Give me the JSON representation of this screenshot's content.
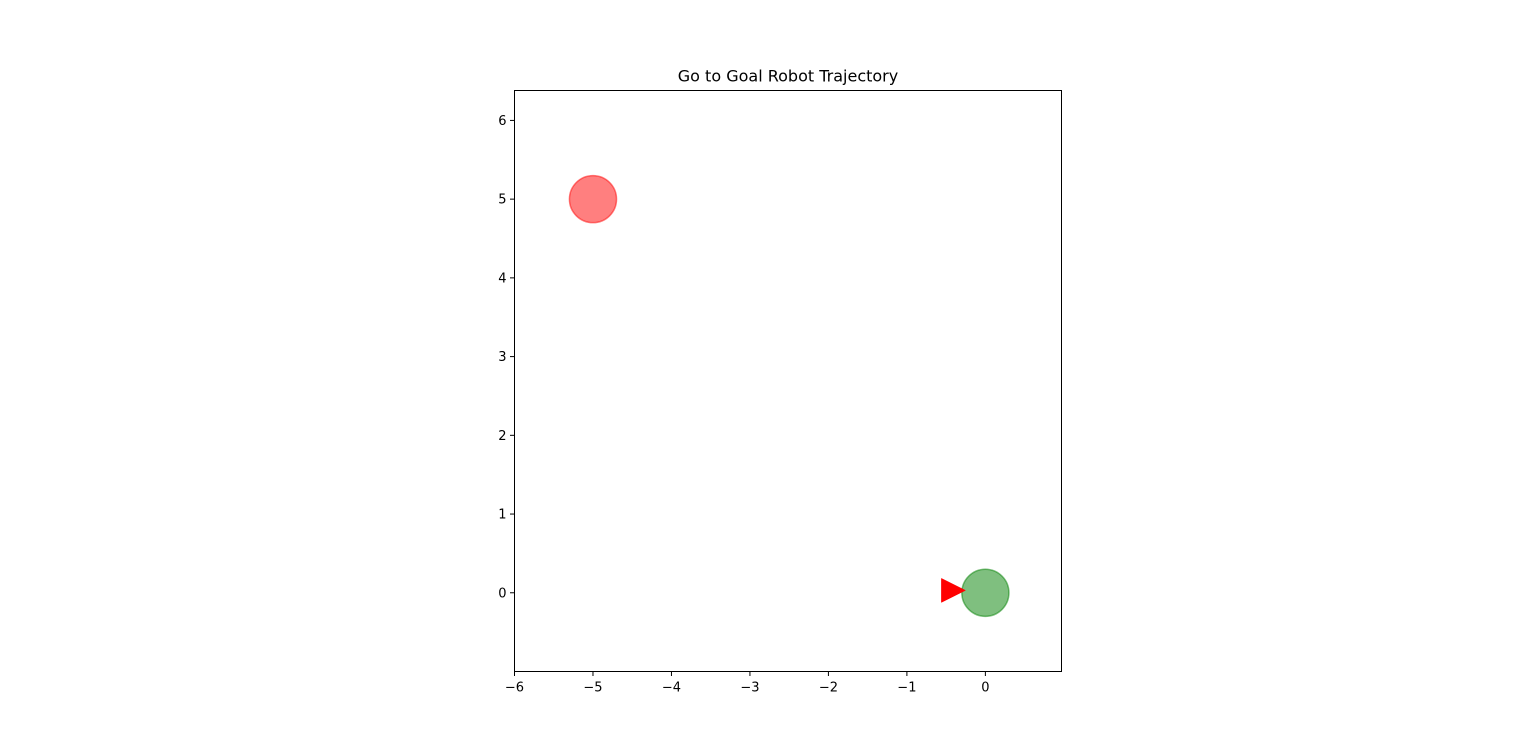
{
  "chart_data": {
    "type": "scatter",
    "title": "Go to Goal Robot Trajectory",
    "xlabel": "",
    "ylabel": "",
    "xlim": [
      -6,
      0.97
    ],
    "ylim": [
      -1,
      6.38
    ],
    "x_ticks": [
      -6,
      -5,
      -4,
      -3,
      -2,
      -1,
      0
    ],
    "y_ticks": [
      0,
      1,
      2,
      3,
      4,
      5,
      6
    ],
    "x_tick_labels": [
      "−6",
      "−5",
      "−4",
      "−3",
      "−2",
      "−1",
      "0"
    ],
    "y_tick_labels": [
      "0",
      "1",
      "2",
      "3",
      "4",
      "5",
      "6"
    ],
    "grid": false,
    "objects": [
      {
        "kind": "circle",
        "x": -5,
        "y": 5,
        "radius": 0.3,
        "color": "#ff0000",
        "alpha": 0.5
      },
      {
        "kind": "circle",
        "x": 0,
        "y": 0,
        "radius": 0.3,
        "color": "#008000",
        "alpha": 0.5
      }
    ],
    "robot": {
      "kind": "triangle-marker",
      "x": -0.42,
      "y": 0.03,
      "heading_deg": 0,
      "color": "#ff0000"
    }
  }
}
